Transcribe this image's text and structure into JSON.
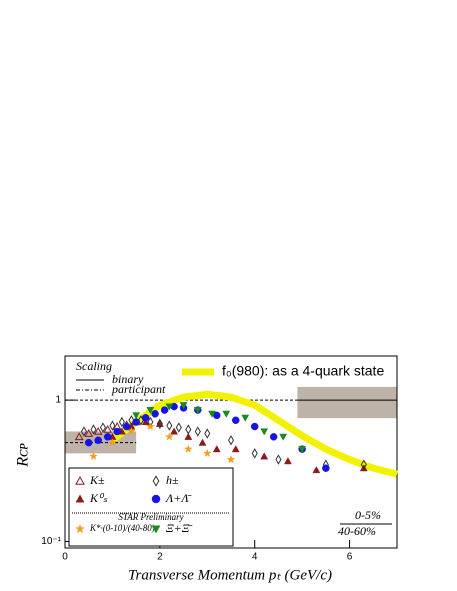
{
  "chart_data": {
    "type": "scatter",
    "xlabel": "Transverse Momentum pₜ (GeV/c)",
    "ylabel": "Rᴄᴘ",
    "xlim": [
      0,
      7
    ],
    "ylim": [
      0.09,
      2.05
    ],
    "log_y": true,
    "xticks": [
      0,
      2,
      4,
      6
    ],
    "yticks": [
      {
        "value": 0.1,
        "label": "10⁻¹"
      },
      1
    ],
    "legend_title": "Scaling",
    "reference_lines": [
      {
        "name": "binary",
        "style": "solid",
        "y": 1,
        "x": [
          4.9,
          7
        ]
      },
      {
        "name": "participant",
        "style": "dashed",
        "y": 1,
        "x": [
          0,
          4.9
        ]
      },
      {
        "style": "dashed",
        "y": 0.5,
        "x": [
          0,
          1.5
        ]
      }
    ],
    "norm_boxes": [
      {
        "x": [
          0,
          1.5
        ],
        "y": [
          0.42,
          0.6
        ]
      },
      {
        "x": [
          4.9,
          7
        ],
        "y": [
          0.745,
          1.24
        ]
      }
    ],
    "curve": {
      "name": "f₀(980): as a 4-quark state",
      "color": "#f2f200",
      "x": [
        1.0,
        1.5,
        2.0,
        2.5,
        3.0,
        3.5,
        4.0,
        4.5,
        5.0,
        5.5,
        6.0,
        6.5,
        7.0
      ],
      "values": [
        0.52,
        0.7,
        0.92,
        1.05,
        1.1,
        1.05,
        0.92,
        0.72,
        0.56,
        0.45,
        0.38,
        0.33,
        0.3
      ]
    },
    "series": [
      {
        "name": "K±",
        "color": "#8b1a1a",
        "marker": "triangle-open",
        "x": [
          0.3,
          0.5,
          0.7,
          0.9,
          1.1,
          1.3,
          1.5
        ],
        "values": [
          0.55,
          0.58,
          0.6,
          0.62,
          0.65,
          0.67,
          0.7
        ]
      },
      {
        "name": "K⁰ₛ",
        "color": "#8b1a1a",
        "marker": "triangle",
        "x": [
          1.0,
          1.2,
          1.4,
          1.7,
          2.0,
          2.3,
          2.6,
          2.9,
          3.2,
          3.6,
          4.2,
          4.7,
          5.3,
          6.3
        ],
        "values": [
          0.55,
          0.6,
          0.65,
          0.7,
          0.68,
          0.6,
          0.55,
          0.5,
          0.45,
          0.45,
          0.4,
          0.37,
          0.32,
          0.33
        ]
      },
      {
        "name": "h±",
        "color": "#333333",
        "marker": "diamond-open",
        "x": [
          0.4,
          0.6,
          0.8,
          1.0,
          1.2,
          1.4,
          1.6,
          1.8,
          2.0,
          2.2,
          2.4,
          2.6,
          2.8,
          3.0,
          3.5,
          4.0,
          4.5,
          5.5,
          6.3
        ],
        "values": [
          0.6,
          0.62,
          0.64,
          0.66,
          0.7,
          0.72,
          0.72,
          0.7,
          0.68,
          0.66,
          0.64,
          0.62,
          0.6,
          0.58,
          0.52,
          0.42,
          0.38,
          0.35,
          0.35
        ]
      },
      {
        "name": "Λ+Λ̄",
        "color": "#1414e6",
        "marker": "circle",
        "x": [
          0.5,
          0.7,
          0.9,
          1.1,
          1.3,
          1.5,
          1.7,
          1.9,
          2.1,
          2.3,
          2.5,
          2.8,
          3.2,
          3.6,
          4.0,
          4.4,
          5.0,
          5.5
        ],
        "values": [
          0.5,
          0.52,
          0.55,
          0.6,
          0.65,
          0.7,
          0.75,
          0.8,
          0.85,
          0.9,
          0.88,
          0.85,
          0.78,
          0.72,
          0.65,
          0.55,
          0.45,
          0.33
        ]
      },
      {
        "name": "K*·(0-10)/(40-80)",
        "color": "#f0a020",
        "marker": "star",
        "x": [
          0.6,
          1.0,
          1.4,
          1.8,
          2.2,
          2.6,
          3.0,
          3.5
        ],
        "values": [
          0.4,
          0.5,
          0.6,
          0.65,
          0.55,
          0.45,
          0.42,
          0.38
        ]
      },
      {
        "name": "Ξ+Ξ̄",
        "color": "#1a8a1a",
        "marker": "triangle-down",
        "x": [
          1.5,
          1.8,
          2.2,
          2.5,
          2.8,
          3.1,
          3.4,
          3.8,
          4.2,
          4.6,
          5.0
        ],
        "values": [
          0.78,
          0.85,
          0.9,
          0.92,
          0.85,
          0.8,
          0.8,
          0.75,
          0.6,
          0.55,
          0.45
        ]
      }
    ],
    "legend_note": "STAR Preliminary",
    "centrality_top": "0-5%",
    "centrality_bottom": "40-60%"
  }
}
